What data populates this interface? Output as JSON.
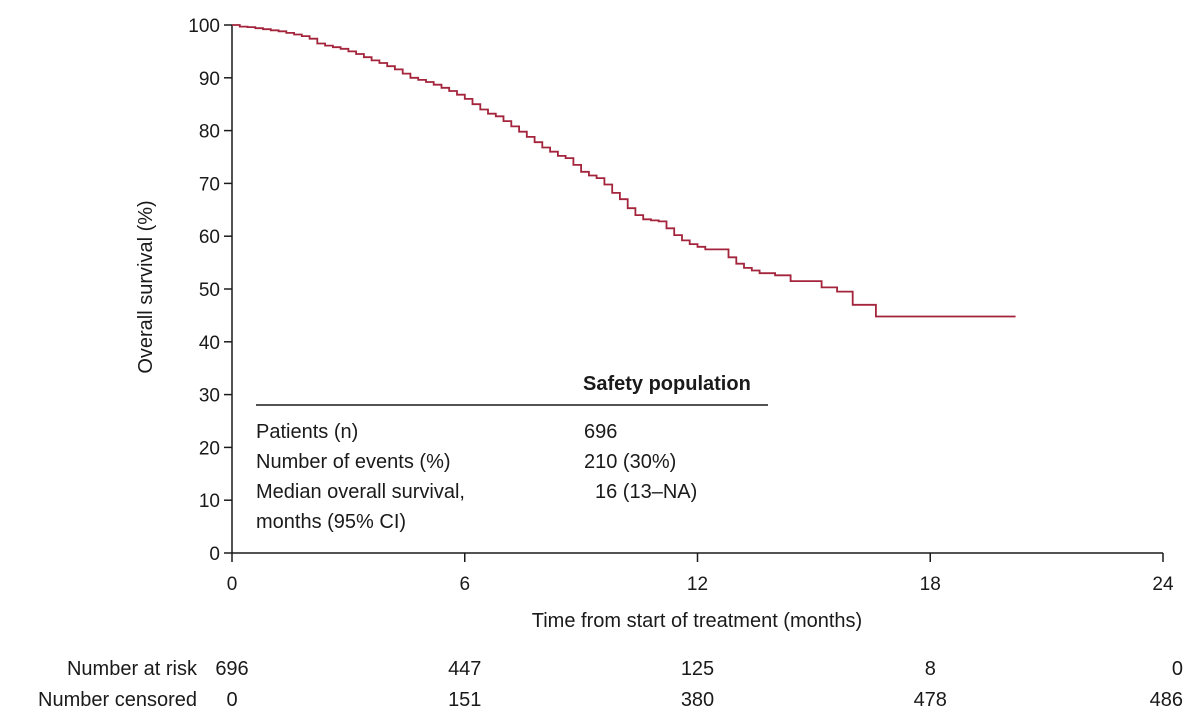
{
  "chart_data": {
    "type": "line",
    "title": "",
    "xlabel": "Time from start of treatment (months)",
    "ylabel": "Overall survival (%)",
    "xlim": [
      0,
      24
    ],
    "ylim": [
      0,
      100
    ],
    "x_ticks": [
      0,
      6,
      12,
      18,
      24
    ],
    "y_ticks": [
      0,
      10,
      20,
      30,
      40,
      50,
      60,
      70,
      80,
      90,
      100
    ],
    "grid": false,
    "line_color": "#a3243b",
    "series": [
      {
        "x": [
          0,
          0.2,
          0.4,
          0.6,
          0.8,
          1.0,
          1.2,
          1.4,
          1.6,
          1.8,
          2.0,
          2.2,
          2.4,
          2.6,
          2.8,
          3.0,
          3.2,
          3.4,
          3.6,
          3.8,
          4.0,
          4.2,
          4.4,
          4.6,
          4.8,
          5.0,
          5.2,
          5.4,
          5.6,
          5.8,
          6.0,
          6.2,
          6.4,
          6.6,
          6.8,
          7.0,
          7.2,
          7.4,
          7.6,
          7.8,
          8.0,
          8.2,
          8.4,
          8.6,
          8.8,
          9.0,
          9.2,
          9.4,
          9.6,
          9.8,
          10.0,
          10.2,
          10.4,
          10.6,
          10.8,
          11.0,
          11.2,
          11.4,
          11.6,
          11.8,
          12.0,
          12.2,
          12.4,
          12.6,
          12.8,
          13.0,
          13.2,
          13.4,
          13.6,
          14.0,
          14.4,
          14.8,
          15.2,
          15.6,
          16.0,
          16.4,
          16.6,
          17.0,
          18.0,
          19.0,
          20.2
        ],
        "y": [
          100,
          99.7,
          99.6,
          99.4,
          99.2,
          99.0,
          98.8,
          98.5,
          98.2,
          97.9,
          97.4,
          96.5,
          96.1,
          95.8,
          95.5,
          95.0,
          94.5,
          93.9,
          93.3,
          92.8,
          92.2,
          91.6,
          90.8,
          90.0,
          89.6,
          89.2,
          88.7,
          88.1,
          87.5,
          86.8,
          86.0,
          85.0,
          84.0,
          83.2,
          82.7,
          81.8,
          80.8,
          79.8,
          78.8,
          77.8,
          76.8,
          76.0,
          75.2,
          74.8,
          73.5,
          72.2,
          71.5,
          71.0,
          69.8,
          68.2,
          67.0,
          65.3,
          64.0,
          63.2,
          63.0,
          62.8,
          61.5,
          60.2,
          59.2,
          58.5,
          58.0,
          57.5,
          57.5,
          57.5,
          56.0,
          54.8,
          54.0,
          53.5,
          53.0,
          52.6,
          51.5,
          51.5,
          50.3,
          49.5,
          47.0,
          47.0,
          44.8,
          44.8,
          44.8,
          44.8,
          44.8
        ]
      }
    ],
    "summary_table": {
      "header": "Safety population",
      "rows": [
        {
          "label": "Patients (n)",
          "label_line2": "",
          "value": "696"
        },
        {
          "label": "Number of events (%)",
          "label_line2": "",
          "value": "210 (30%)"
        },
        {
          "label": "Median overall survival,",
          "label_line2": "months (95% CI)",
          "value": "16 (13–NA)"
        }
      ]
    },
    "risk_table": {
      "rows": [
        {
          "label": "Number at risk",
          "values": [
            "696",
            "447",
            "125",
            "8",
            "0"
          ]
        },
        {
          "label": "Number censored",
          "values": [
            "0",
            "151",
            "380",
            "478",
            "486"
          ]
        }
      ]
    }
  }
}
